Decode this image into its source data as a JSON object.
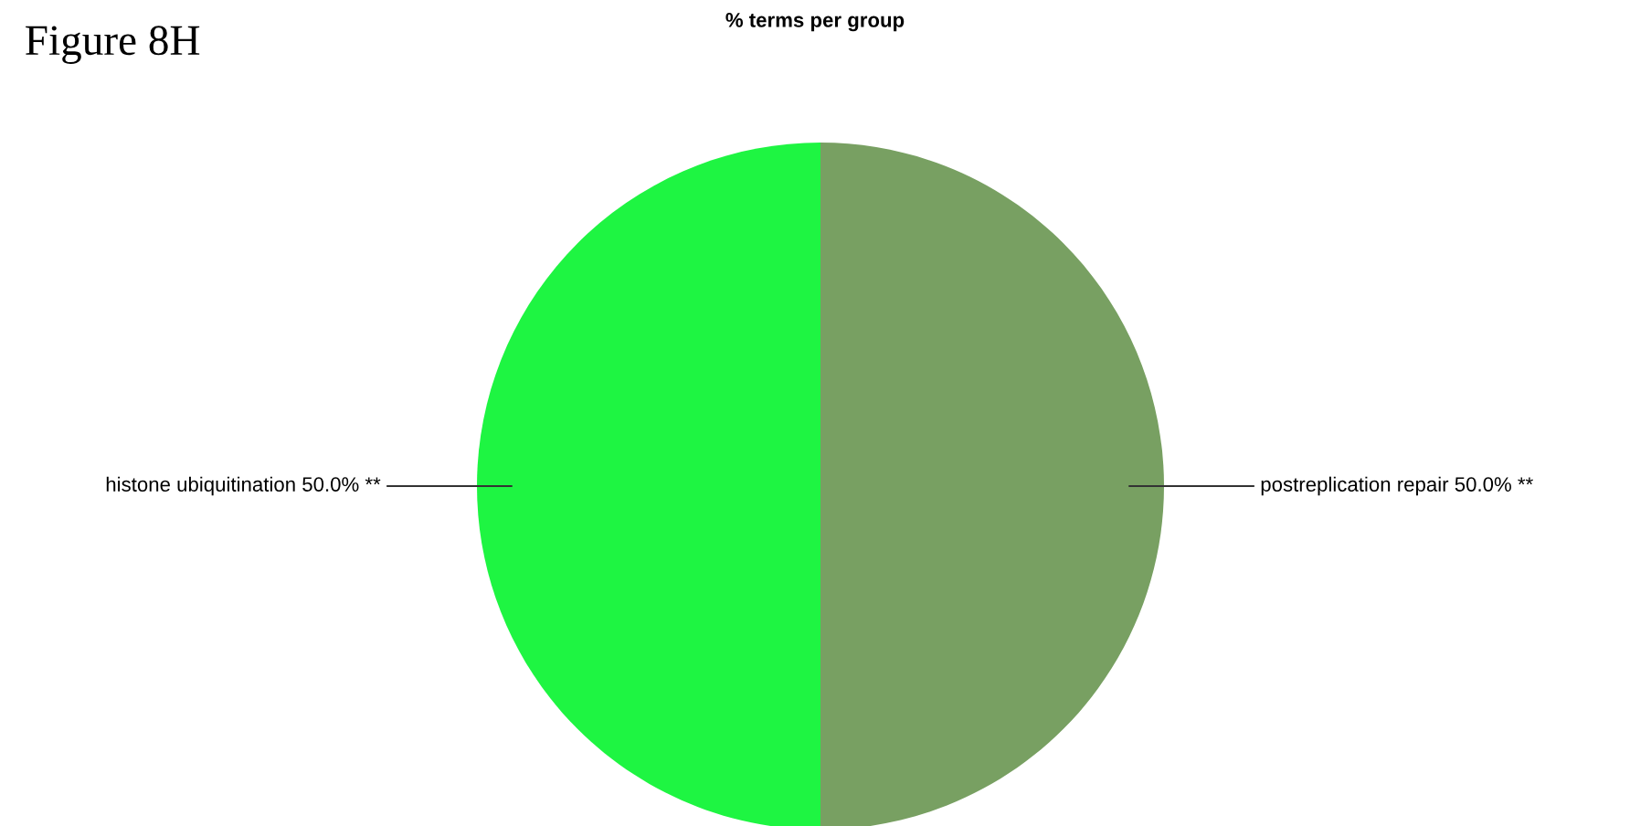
{
  "chart_data": {
    "type": "pie",
    "title": "% terms per group",
    "annotations": [
      "Figure 8H"
    ],
    "categories": [
      "postreplication repair",
      "histone ubiquitination"
    ],
    "values": [
      50,
      50
    ],
    "value_labels": [
      "50.0% **",
      "50.0% **"
    ],
    "colors": [
      "#78a062",
      "#1ef542"
    ],
    "legend": false
  }
}
